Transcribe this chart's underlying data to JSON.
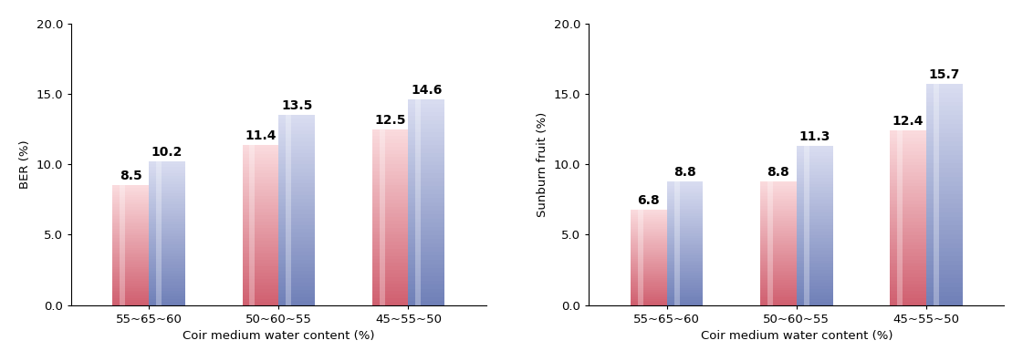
{
  "left_chart": {
    "ylabel": "BER (%)",
    "xlabel": "Coir medium water content (%)",
    "categories": [
      "55~65~60",
      "50~60~55",
      "45~55~50"
    ],
    "red_values": [
      8.5,
      11.4,
      12.5
    ],
    "blue_values": [
      10.2,
      13.5,
      14.6
    ],
    "ylim": [
      0,
      20.0
    ],
    "yticks": [
      0.0,
      5.0,
      10.0,
      15.0,
      20.0
    ]
  },
  "right_chart": {
    "ylabel": "Sunburn fruit (%)",
    "xlabel": "Coir medium water content (%)",
    "categories": [
      "55~65~60",
      "50~60~55",
      "45~55~50"
    ],
    "red_values": [
      6.8,
      8.8,
      12.4
    ],
    "blue_values": [
      8.8,
      11.3,
      15.7
    ],
    "ylim": [
      0,
      20.0
    ],
    "yticks": [
      0.0,
      5.0,
      10.0,
      15.0,
      20.0
    ]
  },
  "bar_width": 0.28,
  "red_color_top": "#FADADD",
  "red_color_bottom": "#D06070",
  "blue_color_top": "#D8DCF0",
  "blue_color_bottom": "#7080B8",
  "label_fontsize": 9.5,
  "axis_fontsize": 9.5,
  "tick_fontsize": 9.5,
  "value_fontsize": 10,
  "background_color": "#ffffff"
}
